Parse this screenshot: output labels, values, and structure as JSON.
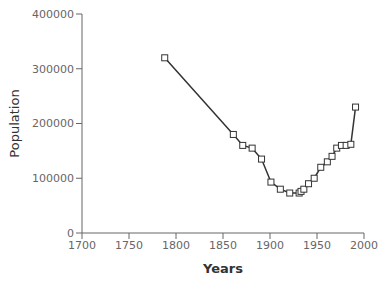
{
  "chart_data": {
    "type": "line",
    "x": [
      1788,
      1861,
      1871,
      1881,
      1891,
      1901,
      1911,
      1921,
      1931,
      1933,
      1936,
      1941,
      1947,
      1954,
      1961,
      1966,
      1971,
      1976,
      1981,
      1986,
      1991
    ],
    "values": [
      320000,
      180000,
      160000,
      155000,
      135000,
      93000,
      80000,
      73000,
      73000,
      76000,
      80000,
      90000,
      100000,
      120000,
      130000,
      140000,
      155000,
      160000,
      160000,
      162000,
      230000
    ],
    "xlabel": "Years",
    "ylabel": "Population",
    "xlim": [
      1700,
      2000
    ],
    "ylim": [
      0,
      400000
    ],
    "xticks": [
      1700,
      1750,
      1800,
      1850,
      1900,
      1950,
      2000
    ],
    "yticks": [
      0,
      100000,
      200000,
      300000,
      400000
    ],
    "color": "#333333",
    "marker": "square",
    "grid": false
  }
}
